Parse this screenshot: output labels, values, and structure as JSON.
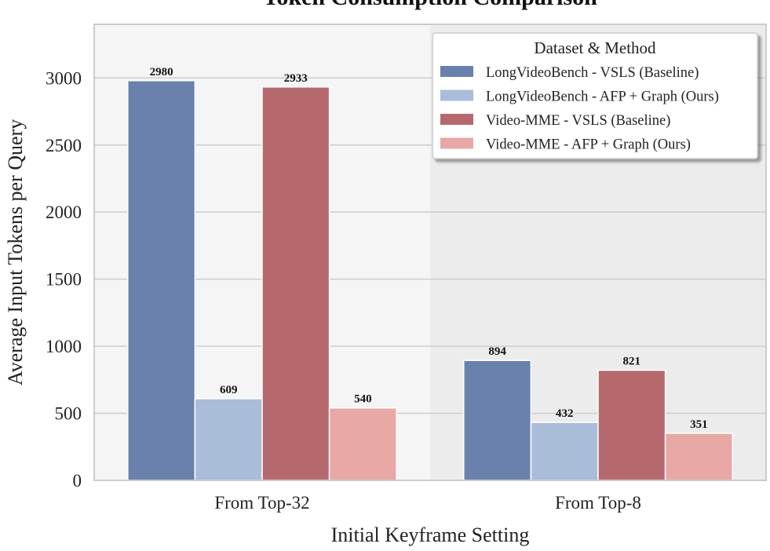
{
  "chart_data": {
    "type": "bar",
    "title": "Token Consumption Comparison",
    "xlabel": "Initial Keyframe Setting",
    "ylabel": "Average Input Tokens per Query",
    "categories": [
      "From Top-32",
      "From Top-8"
    ],
    "ylim": [
      0,
      3400
    ],
    "yticks": [
      0,
      500,
      1000,
      1500,
      2000,
      2500,
      3000
    ],
    "grid": true,
    "legend_title": "Dataset & Method",
    "legend_position": "top-right",
    "series": [
      {
        "name": "LongVideoBench - VSLS (Baseline)",
        "values": [
          2980,
          894
        ],
        "color": "#6a80ad"
      },
      {
        "name": "LongVideoBench - AFP + Graph (Ours)",
        "values": [
          609,
          432
        ],
        "color": "#a9bdd9"
      },
      {
        "name": "Video-MME - VSLS (Baseline)",
        "values": [
          2933,
          821
        ],
        "color": "#b5696d"
      },
      {
        "name": "Video-MME - AFP + Graph (Ours)",
        "values": [
          540,
          351
        ],
        "color": "#e7a8a6"
      }
    ]
  }
}
